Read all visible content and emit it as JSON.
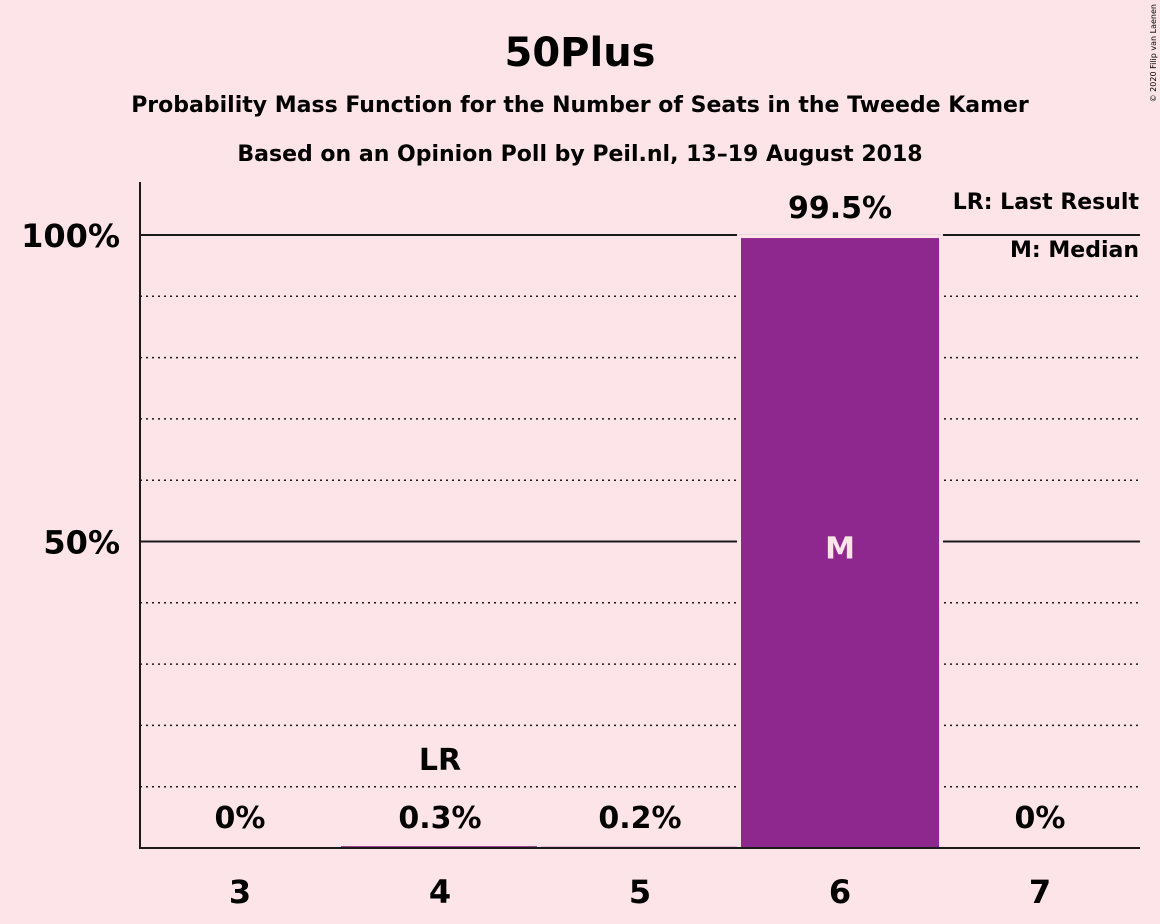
{
  "chart_data": {
    "type": "bar",
    "title": "50Plus",
    "subtitle": "Probability Mass Function for the Number of Seats in the Tweede Kamer",
    "subtitle2": "Based on an Opinion Poll by Peil.nl, 13–19 August 2018",
    "categories": [
      "3",
      "4",
      "5",
      "6",
      "7"
    ],
    "values": [
      0,
      0.3,
      0.2,
      99.5,
      0
    ],
    "value_labels": [
      "0%",
      "0.3%",
      "0.2%",
      "99.5%",
      "0%"
    ],
    "ylim": [
      0,
      110
    ],
    "y_ticks": [
      {
        "value": 50,
        "label": "50%"
      },
      {
        "value": 100,
        "label": "100%"
      }
    ],
    "minor_gridlines": [
      10,
      20,
      30,
      40,
      60,
      70,
      80,
      90
    ],
    "bar_color": "#8e278e",
    "last_result": {
      "category": "4",
      "label": "LR"
    },
    "median": {
      "category": "6",
      "label": "M"
    },
    "legend": {
      "placement": "top-right",
      "entries": [
        "LR: Last Result",
        "M: Median"
      ]
    },
    "copyright": "© 2020 Filip van Laenen"
  }
}
